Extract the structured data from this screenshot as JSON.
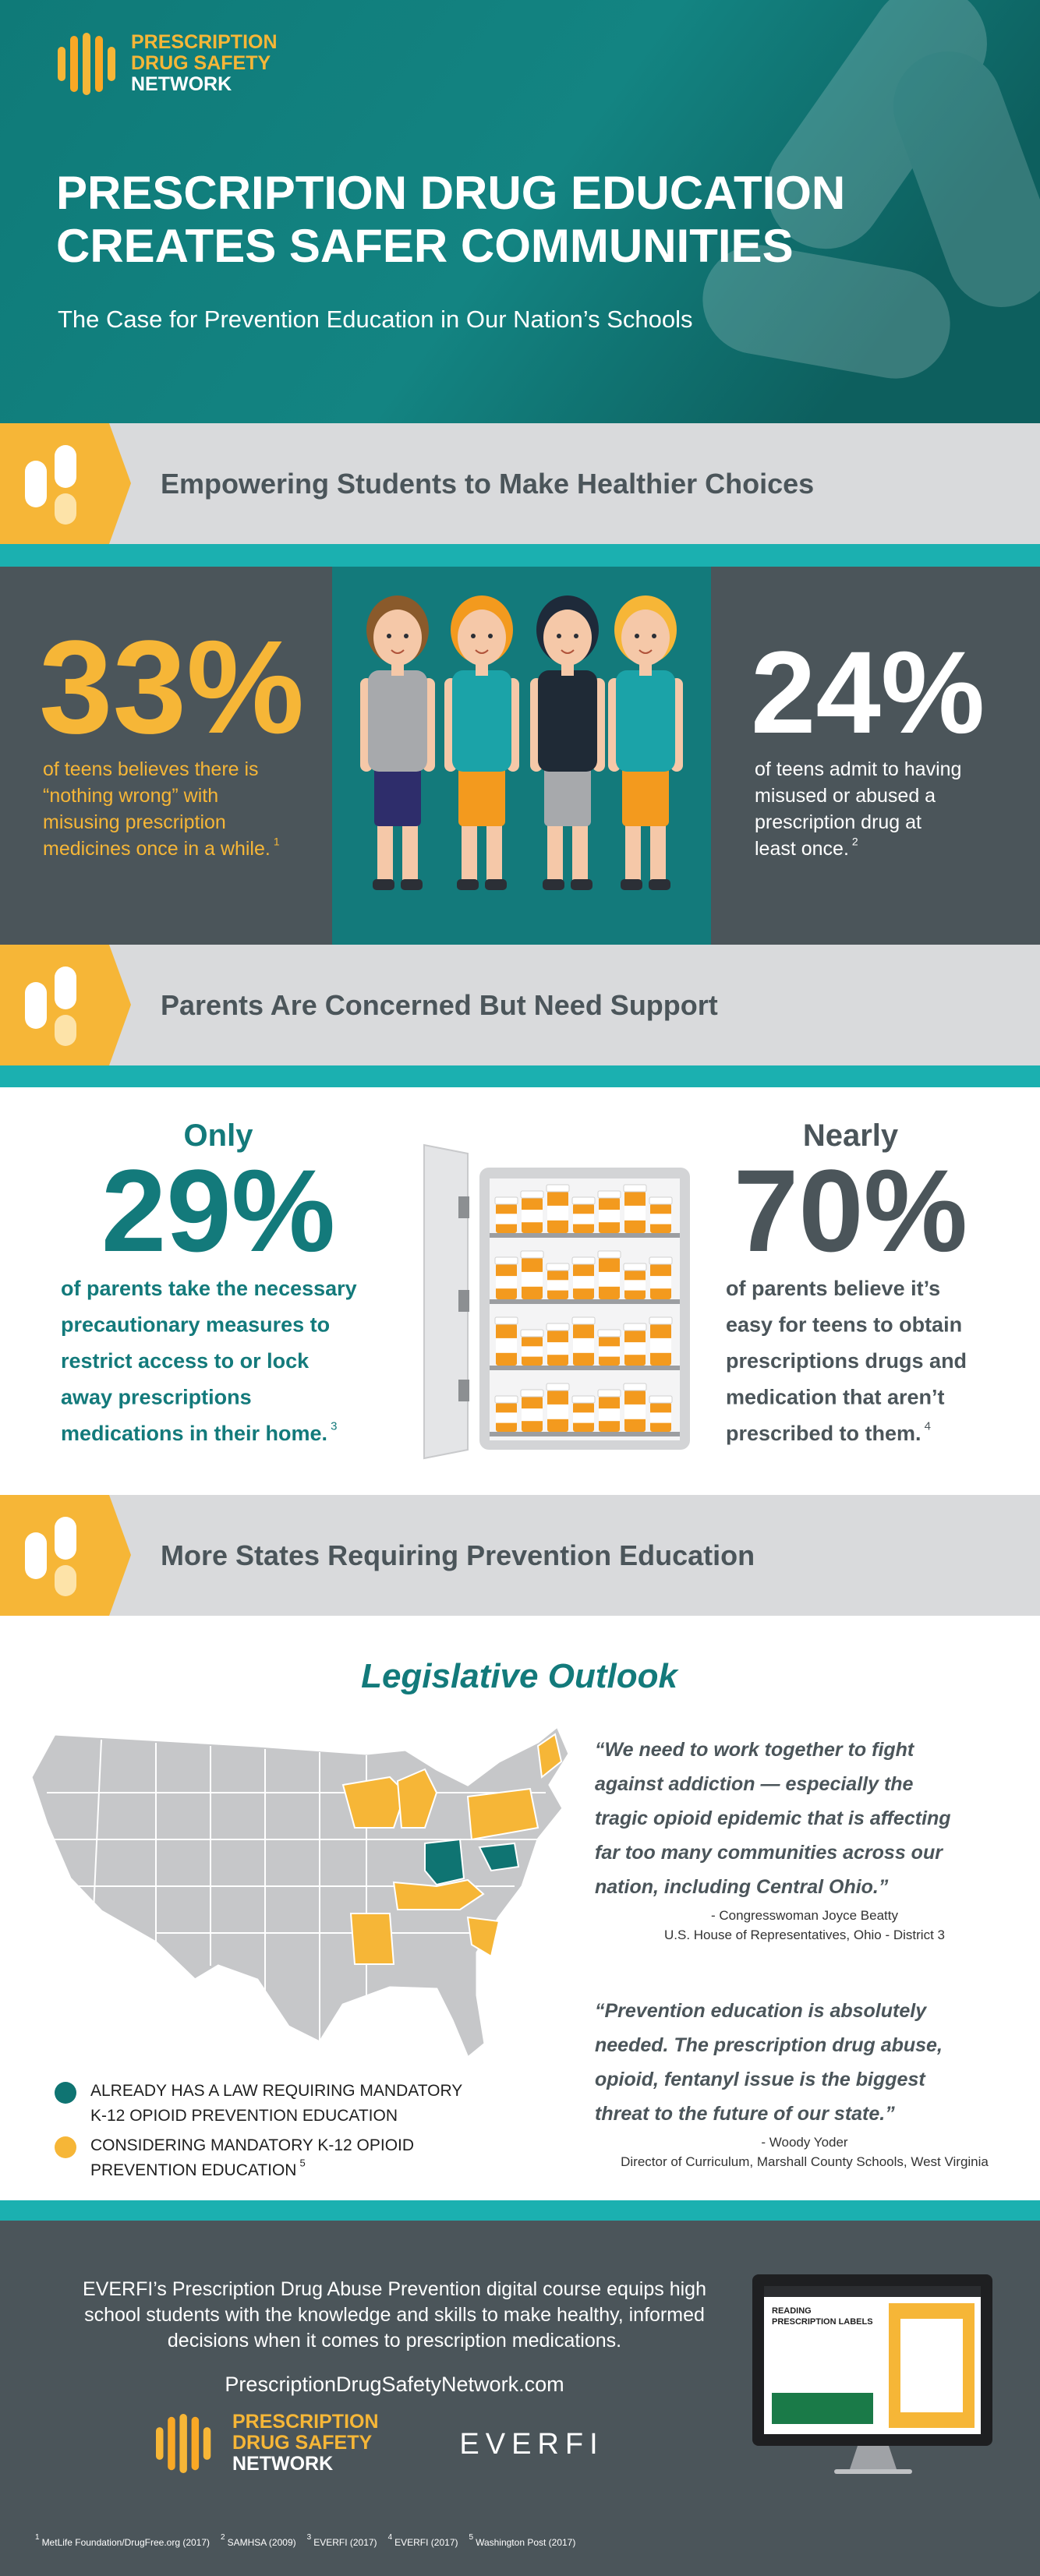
{
  "header": {
    "logo": [
      "PRESCRIPTION",
      "DRUG SAFETY",
      "NETWORK"
    ],
    "title": [
      "PRESCRIPTION DRUG EDUCATION",
      "CREATES SAFER COMMUNITIES"
    ],
    "subtitle": "The Case for Prevention Education in Our Nation’s Schools"
  },
  "sections": [
    "Empowering Students to Make Healthier Choices",
    "Parents Are Concerned But Need Support",
    "More States Requiring Prevention Education"
  ],
  "teen_stats": [
    {
      "value": "33%",
      "lines": [
        "of teens believes there is",
        "“nothing wrong” with",
        "misusing prescription",
        "medicines once in a while."
      ],
      "note": "1"
    },
    {
      "value": "24%",
      "lines": [
        "of teens admit to having",
        "misused or abused a",
        "prescription drug at",
        "least once."
      ],
      "note": "2"
    }
  ],
  "parent_stats": [
    {
      "qualifier": "Only",
      "value": "29%",
      "lines": [
        "of parents take the necessary",
        "precautionary measures to",
        "restrict access to or lock",
        "away prescriptions",
        "medications in their home."
      ],
      "note": "3"
    },
    {
      "qualifier": "Nearly",
      "value": "70%",
      "lines": [
        "of parents believe it’s",
        "easy for teens to obtain",
        "prescriptions drugs and",
        "medication that aren’t",
        "prescribed to them."
      ],
      "note": "4"
    }
  ],
  "legislative": {
    "title": "Legislative Outlook",
    "legend": [
      {
        "lines": [
          "ALREADY HAS A LAW REQUIRING MANDATORY",
          "K-12 OPIOID PREVENTION EDUCATION"
        ],
        "color": "#0f7472"
      },
      {
        "lines": [
          "CONSIDERING MANDATORY K-12 OPIOID",
          "PREVENTION EDUCATION"
        ],
        "note": "5",
        "color": "#f6b637"
      }
    ],
    "quotes": [
      {
        "lines": [
          "“We need to work together to fight",
          "against addiction —  especially the",
          "tragic opioid epidemic that is affecting",
          "far too many communities across our",
          "nation, including Central Ohio.”"
        ],
        "speaker": "- Congresswoman Joyce Beatty",
        "role": "U.S. House of Representatives, Ohio - District 3"
      },
      {
        "lines": [
          "“Prevention education is absolutely",
          "needed. The prescription drug abuse,",
          "opioid, fentanyl issue is the biggest",
          "threat to the future of our state.”"
        ],
        "speaker": "- Woody Yoder",
        "role": "Director of Curriculum, Marshall County Schools, West Virginia"
      }
    ]
  },
  "footer": {
    "lines": [
      "EVERFI’s Prescription Drug Abuse Prevention digital course equips high",
      "school students with the knowledge and skills to make healthy, informed",
      "decisions when it comes to prescription medications."
    ],
    "url": "PrescriptionDrugSafetyNetwork.com",
    "partner": "EVERFI",
    "screen_title": [
      "READING",
      "PRESCRIPTION LABELS"
    ],
    "footnotes": [
      {
        "num": "1",
        "text": "MetLife Foundation/DrugFree.org (2017)"
      },
      {
        "num": "2",
        "text": "SAMHSA (2009)"
      },
      {
        "num": "3",
        "text": "EVERFI (2017)"
      },
      {
        "num": "4",
        "text": "EVERFI (2017)"
      },
      {
        "num": "5",
        "text": "Washington Post (2017)"
      }
    ]
  }
}
